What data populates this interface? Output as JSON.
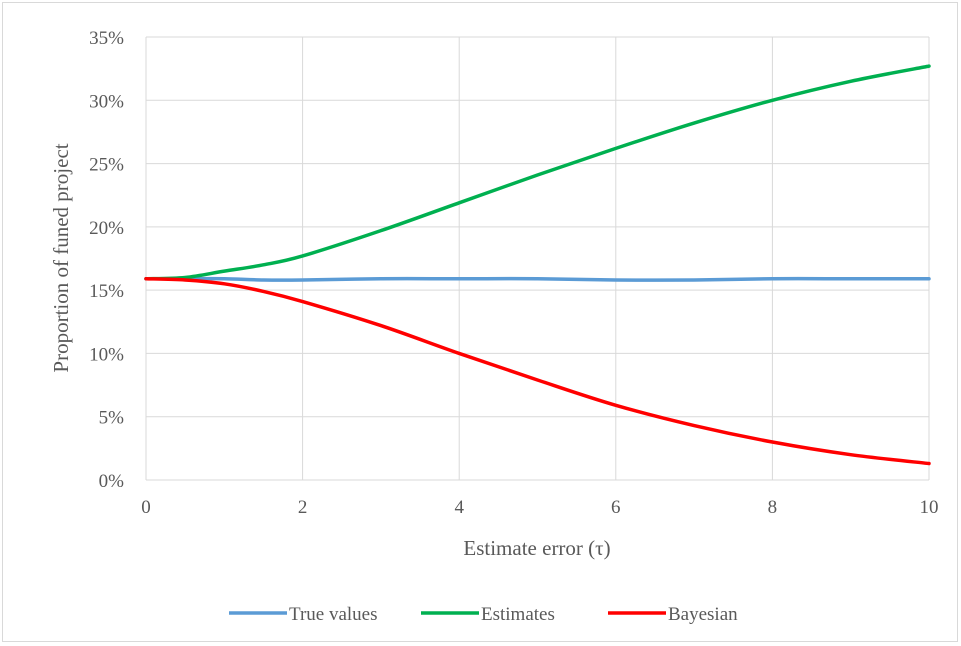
{
  "chart_data": {
    "type": "line",
    "xlabel": "Estimate error (τ)",
    "ylabel": "Proportion of funed project",
    "xlim": [
      0,
      10
    ],
    "ylim": [
      0,
      0.35
    ],
    "xticks": [
      "0",
      "2",
      "4",
      "6",
      "8",
      "10"
    ],
    "xtick_values": [
      0,
      2,
      4,
      6,
      8,
      10
    ],
    "yticks": [
      "0%",
      "5%",
      "10%",
      "15%",
      "20%",
      "25%",
      "30%",
      "35%"
    ],
    "ytick_values": [
      0,
      0.05,
      0.1,
      0.15,
      0.2,
      0.25,
      0.3,
      0.35
    ],
    "grid": true,
    "legend_position": "bottom",
    "x": [
      0,
      0.5,
      1,
      1.5,
      2,
      3,
      4,
      5,
      6,
      7,
      8,
      9,
      10
    ],
    "series": [
      {
        "name": "True values",
        "color": "#5b9bd5",
        "values": [
          0.159,
          0.159,
          0.159,
          0.158,
          0.158,
          0.159,
          0.159,
          0.159,
          0.158,
          0.158,
          0.159,
          0.159,
          0.159
        ]
      },
      {
        "name": "Estimates",
        "color": "#00b050",
        "values": [
          0.159,
          0.16,
          0.165,
          0.17,
          0.177,
          0.197,
          0.219,
          0.241,
          0.262,
          0.282,
          0.3,
          0.315,
          0.327
        ]
      },
      {
        "name": "Bayesian",
        "color": "#ff0000",
        "values": [
          0.159,
          0.158,
          0.155,
          0.149,
          0.141,
          0.122,
          0.1,
          0.079,
          0.059,
          0.043,
          0.03,
          0.02,
          0.013
        ]
      }
    ]
  }
}
